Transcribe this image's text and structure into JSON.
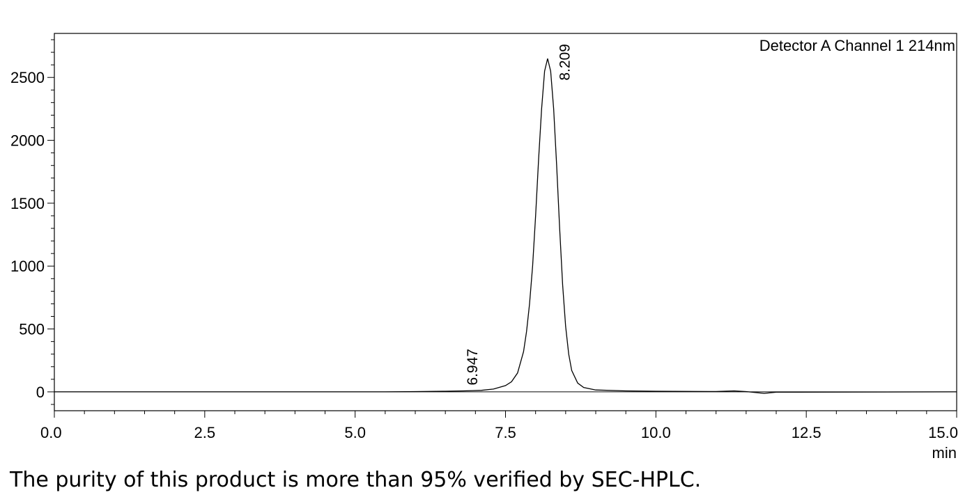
{
  "chart_data": {
    "type": "line",
    "detector_label": "Detector A Channel 1 214nm",
    "xlabel": "min",
    "ylabel": "",
    "xlim": [
      0.0,
      15.0
    ],
    "ylim": [
      -150,
      2850
    ],
    "x_ticks": [
      "0.0",
      "2.5",
      "5.0",
      "7.5",
      "10.0",
      "12.5",
      "15.0"
    ],
    "x_tick_values": [
      0.0,
      2.5,
      5.0,
      7.5,
      10.0,
      12.5,
      15.0
    ],
    "y_ticks": [
      "0",
      "500",
      "1000",
      "1500",
      "2000",
      "2500"
    ],
    "y_tick_values": [
      0,
      500,
      1000,
      1500,
      2000,
      2500
    ],
    "grid": false,
    "baseline": 0,
    "peaks": [
      {
        "retention_time": "6.947",
        "x": 6.947,
        "height": 8
      },
      {
        "retention_time": "8.209",
        "x": 8.209,
        "height": 2650
      }
    ],
    "series": [
      {
        "x": [
          0.0,
          5.5,
          6.0,
          6.5,
          6.8,
          6.95,
          7.1,
          7.3,
          7.5,
          7.6,
          7.7,
          7.8,
          7.85,
          7.9,
          7.95,
          8.0,
          8.05,
          8.1,
          8.15,
          8.2,
          8.25,
          8.3,
          8.35,
          8.4,
          8.45,
          8.5,
          8.55,
          8.6,
          8.7,
          8.8,
          9.0,
          9.5,
          10.0,
          11.0,
          11.3,
          11.5,
          11.8,
          12.0,
          15.0
        ],
        "y": [
          0,
          0,
          2,
          5,
          8,
          10,
          12,
          22,
          50,
          80,
          150,
          320,
          480,
          700,
          1000,
          1400,
          1850,
          2250,
          2550,
          2650,
          2550,
          2250,
          1800,
          1300,
          850,
          520,
          300,
          170,
          70,
          35,
          15,
          8,
          5,
          3,
          8,
          2,
          -12,
          -3,
          0
        ]
      }
    ]
  },
  "caption": "The purity of this product is more than 95% verified by SEC-HPLC."
}
